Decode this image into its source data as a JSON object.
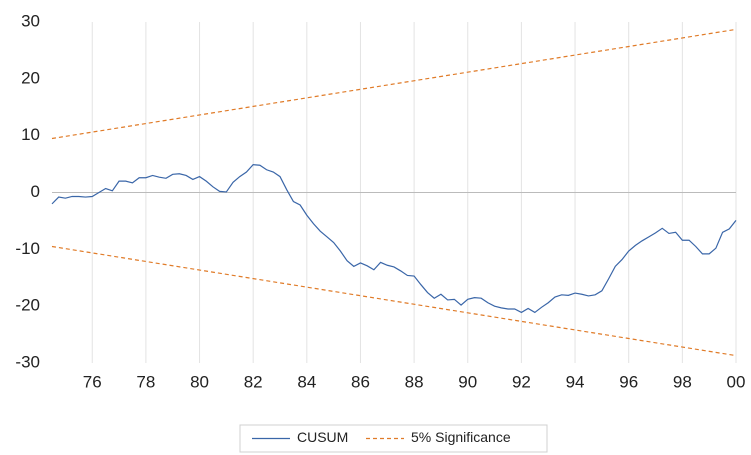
{
  "chart_data": {
    "type": "line",
    "x": [
      1974.5,
      1974.75,
      1975,
      1975.25,
      1975.5,
      1975.75,
      1976,
      1976.25,
      1976.5,
      1976.75,
      1977,
      1977.25,
      1977.5,
      1977.75,
      1978,
      1978.25,
      1978.5,
      1978.75,
      1979,
      1979.25,
      1979.5,
      1979.75,
      1980,
      1980.25,
      1980.5,
      1980.75,
      1981,
      1981.25,
      1981.5,
      1981.75,
      1982,
      1982.25,
      1982.5,
      1982.75,
      1983,
      1983.25,
      1983.5,
      1983.75,
      1984,
      1984.25,
      1984.5,
      1984.75,
      1985,
      1985.25,
      1985.5,
      1985.75,
      1986,
      1986.25,
      1986.5,
      1986.75,
      1987,
      1987.25,
      1987.5,
      1987.75,
      1988,
      1988.25,
      1988.5,
      1988.75,
      1989,
      1989.25,
      1989.5,
      1989.75,
      1990,
      1990.25,
      1990.5,
      1990.75,
      1991,
      1991.25,
      1991.5,
      1991.75,
      1992,
      1992.25,
      1992.5,
      1992.75,
      1993,
      1993.25,
      1993.5,
      1993.75,
      1994,
      1994.25,
      1994.5,
      1994.75,
      1995,
      1995.25,
      1995.5,
      1995.75,
      1996,
      1996.25,
      1996.5,
      1996.75,
      1997,
      1997.25,
      1997.5,
      1997.75,
      1998,
      1998.25,
      1998.5,
      1998.75,
      1999,
      1999.25,
      1999.5,
      1999.75,
      2000
    ],
    "series": [
      {
        "name": "CUSUM",
        "color": "#3a66a8",
        "values": [
          -2,
          -0.8,
          -1,
          -0.7,
          -0.7,
          -0.8,
          -0.7,
          0,
          0.7,
          0.3,
          2,
          2,
          1.7,
          2.6,
          2.6,
          3,
          2.7,
          2.5,
          3.2,
          3.3,
          3,
          2.3,
          2.8,
          2,
          1,
          0.2,
          0.1,
          1.8,
          2.8,
          3.6,
          4.9,
          4.8,
          4,
          3.6,
          2.8,
          0.5,
          -1.6,
          -2.2,
          -4,
          -5.5,
          -6.8,
          -7.8,
          -8.8,
          -10.3,
          -12,
          -13,
          -12.4,
          -12.9,
          -13.6,
          -12.3,
          -12.8,
          -13.1,
          -13.8,
          -14.6,
          -14.7,
          -16.2,
          -17.6,
          -18.6,
          -17.9,
          -18.9,
          -18.8,
          -19.8,
          -18.8,
          -18.5,
          -18.6,
          -19.4,
          -20,
          -20.3,
          -20.5,
          -20.5,
          -21.1,
          -20.4,
          -21.1,
          -20.2,
          -19.4,
          -18.4,
          -18,
          -18.1,
          -17.7,
          -17.9,
          -18.2,
          -18,
          -17.3,
          -15.2,
          -13,
          -11.8,
          -10.3,
          -9.3,
          -8.5,
          -7.8,
          -7.1,
          -6.3,
          -7.2,
          -7,
          -8.4,
          -8.4,
          -9.5,
          -10.8,
          -10.8,
          -9.8,
          -7,
          -6.4,
          -4.9
        ]
      }
    ],
    "band": {
      "name": "5% Significance",
      "color": "#e07b28",
      "x": [
        1974.5,
        2000
      ],
      "upper": [
        9.5,
        28.7
      ],
      "lower": [
        -9.5,
        -28.7
      ]
    },
    "xlim": [
      1974.5,
      2000
    ],
    "xticks": [
      {
        "value": 1976,
        "label": "76"
      },
      {
        "value": 1978,
        "label": "78"
      },
      {
        "value": 1980,
        "label": "80"
      },
      {
        "value": 1982,
        "label": "82"
      },
      {
        "value": 1984,
        "label": "84"
      },
      {
        "value": 1986,
        "label": "86"
      },
      {
        "value": 1988,
        "label": "88"
      },
      {
        "value": 1990,
        "label": "90"
      },
      {
        "value": 1992,
        "label": "92"
      },
      {
        "value": 1994,
        "label": "94"
      },
      {
        "value": 1996,
        "label": "96"
      },
      {
        "value": 1998,
        "label": "98"
      },
      {
        "value": 2000,
        "label": "00"
      }
    ],
    "ylim": [
      -30,
      30
    ],
    "yticks": [
      30,
      20,
      10,
      0,
      -10,
      -20,
      -30
    ],
    "grid": "x",
    "legend": "bottom"
  }
}
